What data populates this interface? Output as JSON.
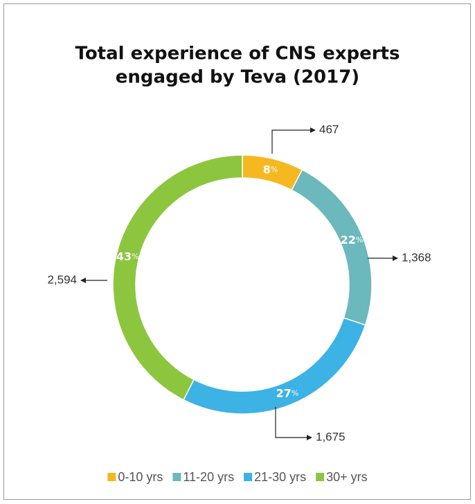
{
  "chart_data": {
    "type": "donut",
    "title": [
      "Total experience of CNS experts",
      "engaged by Teva (2017)"
    ],
    "categories": [
      "0-10 yrs",
      "11-20 yrs",
      "21-30 yrs",
      "30+ yrs"
    ],
    "values": [
      467,
      1368,
      1675,
      2594
    ],
    "value_labels": [
      "467",
      "1,368",
      "1,675",
      "2,594"
    ],
    "percent_labels": [
      "8%",
      "22%",
      "27%",
      "43%"
    ],
    "colors": [
      "#f6b821",
      "#6bb8bd",
      "#3db2e4",
      "#8cc63e"
    ],
    "legend": "bottom"
  }
}
